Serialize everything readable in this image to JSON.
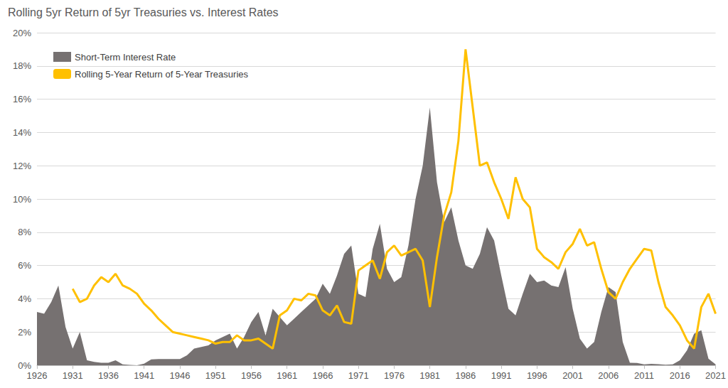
{
  "chart_data": {
    "type": "line",
    "title": "Rolling 5yr Return of 5yr Treasuries vs. Interest Rates",
    "x": [
      1926,
      1927,
      1928,
      1929,
      1930,
      1931,
      1932,
      1933,
      1934,
      1935,
      1936,
      1937,
      1938,
      1939,
      1940,
      1941,
      1942,
      1943,
      1944,
      1945,
      1946,
      1947,
      1948,
      1949,
      1950,
      1951,
      1952,
      1953,
      1954,
      1955,
      1956,
      1957,
      1958,
      1959,
      1960,
      1961,
      1962,
      1963,
      1964,
      1965,
      1966,
      1967,
      1968,
      1969,
      1970,
      1971,
      1972,
      1973,
      1974,
      1975,
      1976,
      1977,
      1978,
      1979,
      1980,
      1981,
      1982,
      1983,
      1984,
      1985,
      1986,
      1987,
      1988,
      1989,
      1990,
      1991,
      1992,
      1993,
      1994,
      1995,
      1996,
      1997,
      1998,
      1999,
      2000,
      2001,
      2002,
      2003,
      2004,
      2005,
      2006,
      2007,
      2008,
      2009,
      2010,
      2011,
      2012,
      2013,
      2014,
      2015,
      2016,
      2017,
      2018,
      2019,
      2020,
      2021
    ],
    "series": [
      {
        "name": "Short-Term Interest Rate",
        "type": "area",
        "color": "#767171",
        "values": [
          3.2,
          3.1,
          3.8,
          4.8,
          2.3,
          1.0,
          2.0,
          0.3,
          0.2,
          0.15,
          0.15,
          0.3,
          0.05,
          0.02,
          0.0,
          0.1,
          0.35,
          0.37,
          0.37,
          0.37,
          0.37,
          0.6,
          1.0,
          1.1,
          1.2,
          1.5,
          1.7,
          1.9,
          1.0,
          1.7,
          2.6,
          3.2,
          1.8,
          3.4,
          2.9,
          2.4,
          2.8,
          3.2,
          3.6,
          4.0,
          4.9,
          4.3,
          5.4,
          6.7,
          7.2,
          4.3,
          4.1,
          7.0,
          8.5,
          5.8,
          5.0,
          5.3,
          7.2,
          10.0,
          12.0,
          15.5,
          11.0,
          8.6,
          9.5,
          7.5,
          6.0,
          5.8,
          6.7,
          8.3,
          7.5,
          5.4,
          3.4,
          3.0,
          4.3,
          5.5,
          5.0,
          5.1,
          4.8,
          4.7,
          5.9,
          3.4,
          1.6,
          1.0,
          1.4,
          3.2,
          4.7,
          4.4,
          1.4,
          0.15,
          0.14,
          0.05,
          0.09,
          0.06,
          0.03,
          0.05,
          0.3,
          0.9,
          1.9,
          2.1,
          0.4,
          0.05
        ]
      },
      {
        "name": "Rolling 5-Year Return of 5-Year Treasuries",
        "type": "line",
        "color": "#ffc000",
        "values": [
          null,
          null,
          null,
          null,
          null,
          4.6,
          3.8,
          4.0,
          4.8,
          5.3,
          5.0,
          5.5,
          4.8,
          4.6,
          4.3,
          3.7,
          3.3,
          2.8,
          2.4,
          2.0,
          1.9,
          1.8,
          1.7,
          1.6,
          1.5,
          1.3,
          1.4,
          1.4,
          1.8,
          1.5,
          1.5,
          1.6,
          1.3,
          1.0,
          3.0,
          3.3,
          4.0,
          3.9,
          4.3,
          4.2,
          3.3,
          3.0,
          3.6,
          2.6,
          2.5,
          5.7,
          6.0,
          6.3,
          5.2,
          6.8,
          7.2,
          6.6,
          6.8,
          7.0,
          6.3,
          3.5,
          6.5,
          9.0,
          10.4,
          13.5,
          19.0,
          15.5,
          12.0,
          12.2,
          11.0,
          10.0,
          8.8,
          11.3,
          10.0,
          9.5,
          7.0,
          6.5,
          6.2,
          5.8,
          6.8,
          7.3,
          8.2,
          7.2,
          7.4,
          5.8,
          4.4,
          4.0,
          5.0,
          5.8,
          6.4,
          7.0,
          6.9,
          5.0,
          3.5,
          3.0,
          2.4,
          1.5,
          1.0,
          3.5,
          4.3,
          3.1
        ]
      }
    ],
    "xlim": [
      1926,
      2021
    ],
    "xticks": [
      1926,
      1931,
      1936,
      1941,
      1946,
      1951,
      1956,
      1961,
      1966,
      1971,
      1976,
      1981,
      1986,
      1991,
      1996,
      2001,
      2006,
      2011,
      2016,
      2021
    ],
    "ylim": [
      0,
      20
    ],
    "yticks": [
      {
        "value": 0,
        "label": "0%"
      },
      {
        "value": 2,
        "label": "2%"
      },
      {
        "value": 4,
        "label": "4%"
      },
      {
        "value": 6,
        "label": "6%"
      },
      {
        "value": 8,
        "label": "8%"
      },
      {
        "value": 10,
        "label": "10%"
      },
      {
        "value": 12,
        "label": "12%"
      },
      {
        "value": 14,
        "label": "14%"
      },
      {
        "value": 16,
        "label": "16%"
      },
      {
        "value": 18,
        "label": "18%"
      },
      {
        "value": 20,
        "label": "20%"
      }
    ],
    "grid": true,
    "legend": "top-left"
  }
}
